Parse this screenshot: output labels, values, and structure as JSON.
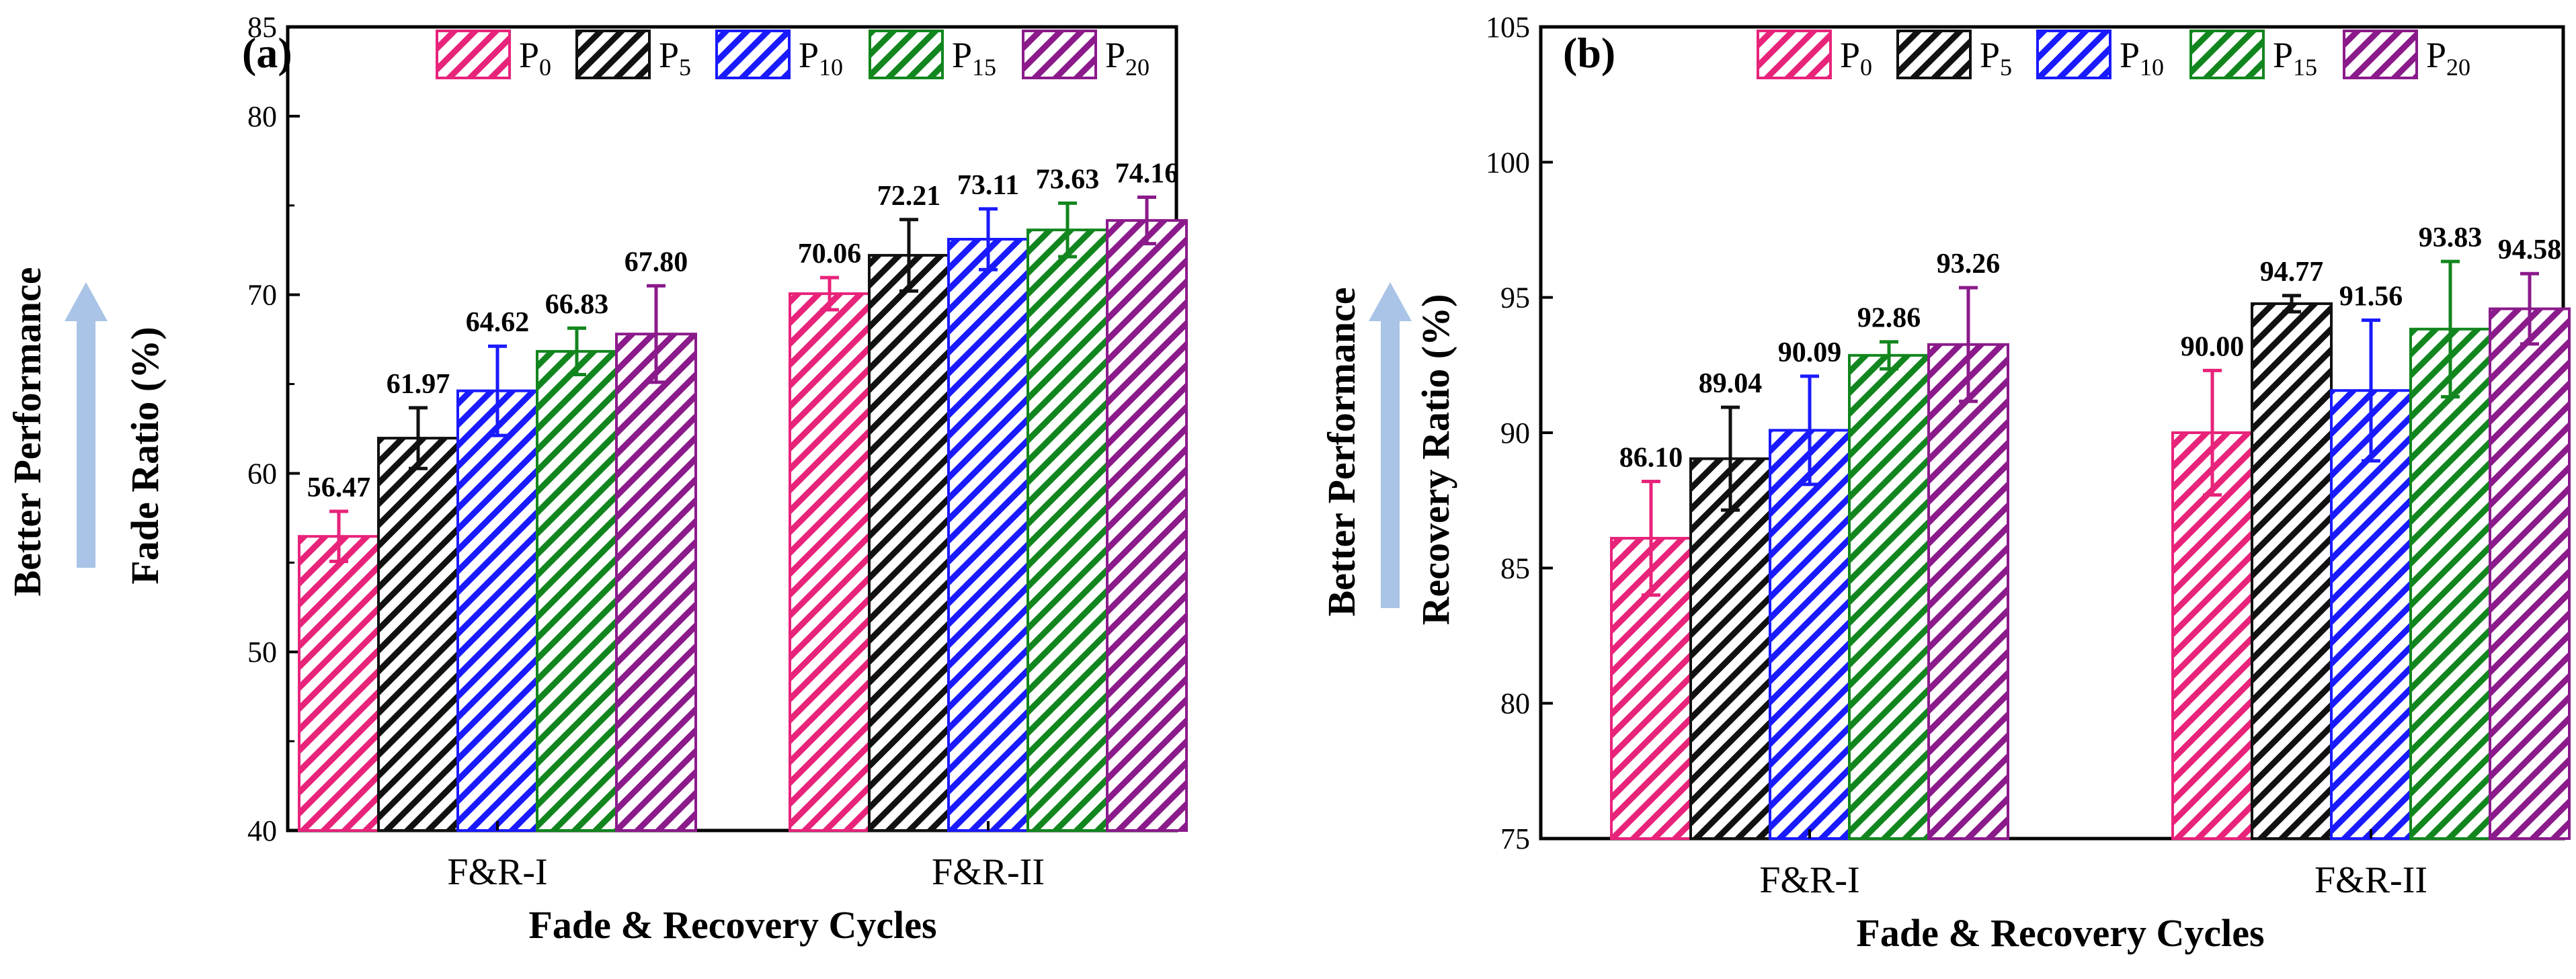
{
  "chart_data": [
    {
      "type": "bar",
      "panel_label": "(a)",
      "title": "",
      "xlabel": "Fade & Recovery Cycles",
      "ylabel": "Fade Ratio (%)",
      "side_label": "Better Performance",
      "ylim": [
        40,
        85
      ],
      "yticks": [
        40,
        50,
        60,
        70,
        80,
        85
      ],
      "categories": [
        "F&R-I",
        "F&R-II"
      ],
      "series": [
        {
          "name": "P",
          "sub": "0",
          "color": "#e8237a",
          "values": [
            56.47,
            70.06
          ],
          "errors": [
            1.4,
            0.9
          ],
          "labels": [
            "56.47",
            "70.06"
          ]
        },
        {
          "name": "P",
          "sub": "5",
          "color": "#111111",
          "values": [
            61.97,
            72.21
          ],
          "errors": [
            1.7,
            2.0
          ],
          "labels": [
            "61.97",
            "72.21"
          ]
        },
        {
          "name": "P",
          "sub": "10",
          "color": "#1a1aff",
          "values": [
            64.62,
            73.11
          ],
          "errors": [
            2.5,
            1.7
          ],
          "labels": [
            "64.62",
            "73.11"
          ]
        },
        {
          "name": "P",
          "sub": "15",
          "color": "#12861e",
          "values": [
            66.83,
            73.63
          ],
          "errors": [
            1.3,
            1.5
          ],
          "labels": [
            "66.83",
            "73.63"
          ]
        },
        {
          "name": "P",
          "sub": "20",
          "color": "#8b1a8b",
          "values": [
            67.8,
            74.16
          ],
          "errors": [
            2.7,
            1.3
          ],
          "labels": [
            "67.80",
            "74.16"
          ]
        }
      ],
      "legend_position": "top"
    },
    {
      "type": "bar",
      "panel_label": "(b)",
      "title": "",
      "xlabel": "Fade & Recovery Cycles",
      "ylabel": "Recovery Ratio (%)",
      "side_label": "Better Performance",
      "ylim": [
        75,
        105
      ],
      "yticks": [
        75,
        80,
        85,
        90,
        95,
        100,
        105
      ],
      "categories": [
        "F&R-I",
        "F&R-II"
      ],
      "series": [
        {
          "name": "P",
          "sub": "0",
          "color": "#e8237a",
          "values": [
            86.1,
            90.0
          ],
          "errors": [
            2.1,
            2.3
          ],
          "labels": [
            "86.10",
            "90.00"
          ]
        },
        {
          "name": "P",
          "sub": "5",
          "color": "#111111",
          "values": [
            89.04,
            94.77
          ],
          "errors": [
            1.9,
            0.3
          ],
          "labels": [
            "89.04",
            "94.77"
          ]
        },
        {
          "name": "P",
          "sub": "10",
          "color": "#1a1aff",
          "values": [
            90.09,
            91.56
          ],
          "errors": [
            2.0,
            2.6
          ],
          "labels": [
            "90.09",
            "91.56"
          ]
        },
        {
          "name": "P",
          "sub": "15",
          "color": "#12861e",
          "values": [
            92.86,
            93.83
          ],
          "errors": [
            0.5,
            2.5
          ],
          "labels": [
            "92.86",
            "93.83"
          ]
        },
        {
          "name": "P",
          "sub": "20",
          "color": "#8b1a8b",
          "values": [
            93.26,
            94.58
          ],
          "errors": [
            2.1,
            1.3
          ],
          "labels": [
            "93.26",
            "94.58"
          ]
        }
      ],
      "legend_position": "top"
    }
  ]
}
